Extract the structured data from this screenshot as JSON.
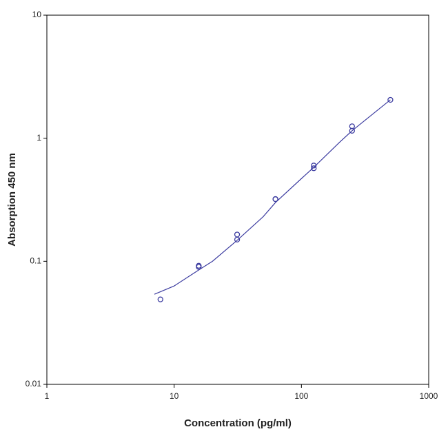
{
  "chart_data": {
    "type": "scatter",
    "x_label": "Concentration (pg/ml)",
    "y_label": "Absorption 450 nm",
    "xscale": "log",
    "yscale": "log",
    "xlim": [
      1,
      1000
    ],
    "xticks": [
      1,
      10,
      100,
      1000
    ],
    "ylim": [
      0.01,
      10
    ],
    "yticks": [
      0.01,
      0.1,
      1,
      10
    ],
    "series": [
      {
        "type": "scatter",
        "color": "#3c3ca0",
        "marker": "open-circle",
        "x": [
          7.8,
          15.6,
          15.6,
          31.25,
          31.25,
          62.5,
          62.5,
          125,
          125,
          250,
          250,
          500
        ],
        "values": [
          0.049,
          0.09,
          0.092,
          0.15,
          0.165,
          0.32,
          0.32,
          0.6,
          0.57,
          1.25,
          1.15,
          2.05
        ]
      },
      {
        "type": "line",
        "color": "#3c3ca0",
        "x": [
          7,
          10,
          15.6,
          20,
          31.25,
          50,
          62.5,
          100,
          125,
          200,
          250,
          500
        ],
        "values": [
          0.054,
          0.063,
          0.085,
          0.1,
          0.148,
          0.23,
          0.3,
          0.47,
          0.58,
          0.93,
          1.15,
          2.05
        ]
      }
    ]
  }
}
